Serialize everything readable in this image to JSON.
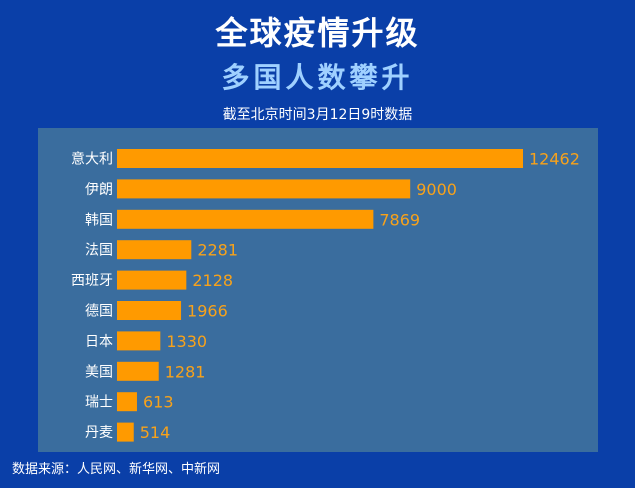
{
  "header": {
    "title": "全球疫情升级",
    "subtitle": "多国人数攀升",
    "note": "截至北京时间3月12日9时数据"
  },
  "footer": {
    "source": "数据来源：人民网、新华网、中新网"
  },
  "colors": {
    "background": "#0a3fa8",
    "panel": "#3a6d9e",
    "bar": "#ff9a00",
    "value_label": "#f7a21b",
    "subtitle": "#9fd0ff"
  },
  "chart_data": {
    "type": "bar",
    "orientation": "horizontal",
    "categories": [
      "意大利",
      "伊朗",
      "韩国",
      "法国",
      "西班牙",
      "德国",
      "日本",
      "美国",
      "瑞士",
      "丹麦"
    ],
    "values": [
      12462,
      9000,
      7869,
      2281,
      2128,
      1966,
      1330,
      1281,
      613,
      514
    ],
    "title": "全球疫情升级",
    "subtitle": "多国人数攀升",
    "xlabel": "",
    "ylabel": "",
    "grid": false,
    "legend": "none"
  }
}
